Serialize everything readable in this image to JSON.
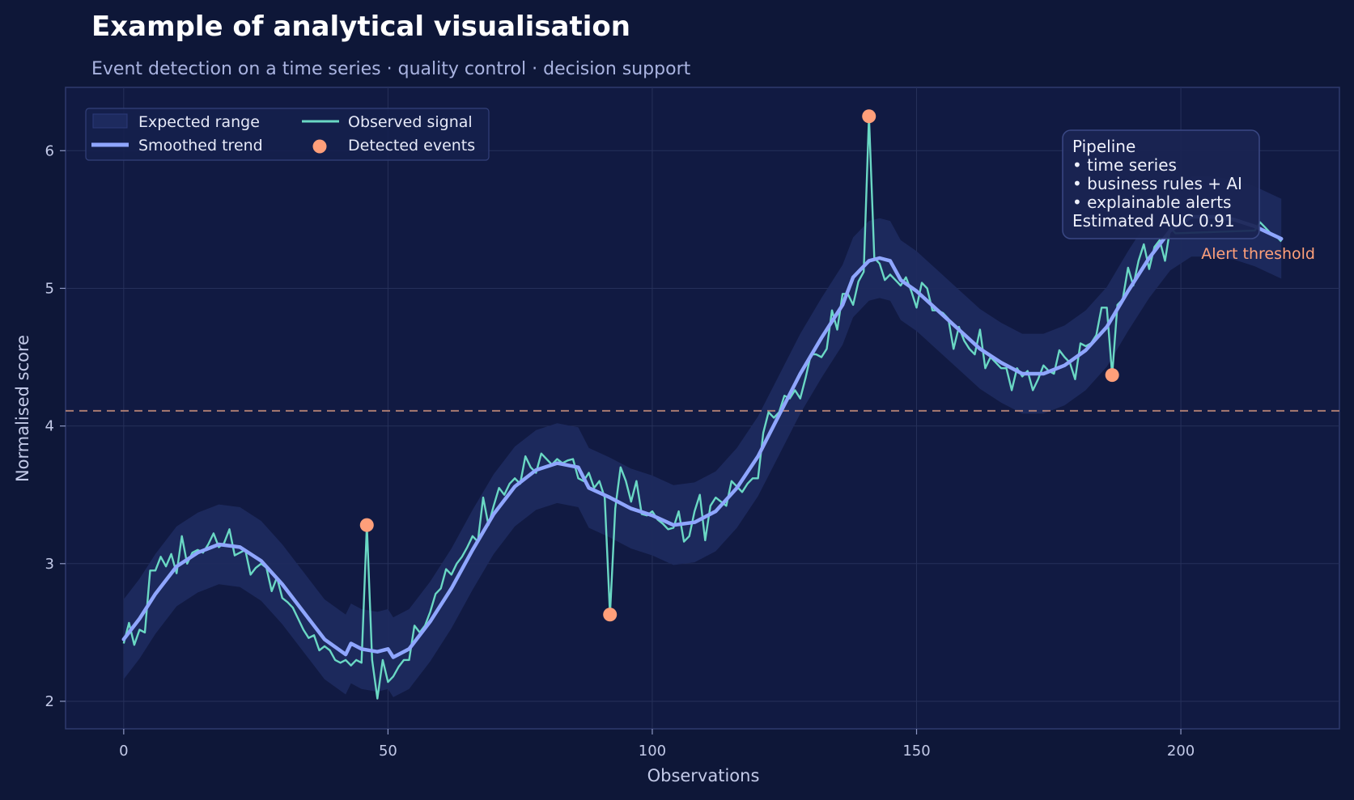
{
  "chart_data": {
    "type": "line",
    "title": "Example of analytical visualisation",
    "subtitle": "Event detection on a time series · quality control · decision support",
    "xlabel": "Observations",
    "ylabel": "Normalised score",
    "xlim": [
      -11,
      230
    ],
    "ylim": [
      1.8,
      6.46
    ],
    "xticks": [
      0,
      50,
      100,
      150,
      200
    ],
    "yticks": [
      2,
      3,
      4,
      5,
      6
    ],
    "grid": true,
    "legend_position": "top-left",
    "legend": {
      "band": "Expected range",
      "trend": "Smoothed trend",
      "signal": "Observed signal",
      "events": "Detected events"
    },
    "threshold": {
      "value": 4.11,
      "label": "Alert threshold",
      "color": "#ffa07a"
    },
    "info_box": {
      "lines": [
        "Pipeline",
        "• time series",
        "• business rules + AI",
        "• explainable alerts",
        "Estimated AUC 0.91"
      ]
    },
    "band_halfwidth": 0.29,
    "trend": [
      [
        0,
        2.45
      ],
      [
        3,
        2.6
      ],
      [
        6,
        2.78
      ],
      [
        10,
        2.98
      ],
      [
        14,
        3.08
      ],
      [
        18,
        3.14
      ],
      [
        22,
        3.12
      ],
      [
        26,
        3.02
      ],
      [
        30,
        2.85
      ],
      [
        34,
        2.65
      ],
      [
        38,
        2.45
      ],
      [
        42,
        2.34
      ],
      [
        43,
        2.42
      ],
      [
        45,
        2.38
      ],
      [
        48,
        2.36
      ],
      [
        50,
        2.38
      ],
      [
        51,
        2.32
      ],
      [
        54,
        2.38
      ],
      [
        58,
        2.58
      ],
      [
        62,
        2.82
      ],
      [
        66,
        3.1
      ],
      [
        70,
        3.36
      ],
      [
        74,
        3.56
      ],
      [
        78,
        3.68
      ],
      [
        82,
        3.73
      ],
      [
        86,
        3.7
      ],
      [
        88,
        3.55
      ],
      [
        92,
        3.48
      ],
      [
        96,
        3.4
      ],
      [
        100,
        3.35
      ],
      [
        104,
        3.28
      ],
      [
        108,
        3.3
      ],
      [
        112,
        3.38
      ],
      [
        116,
        3.55
      ],
      [
        120,
        3.78
      ],
      [
        124,
        4.08
      ],
      [
        128,
        4.38
      ],
      [
        132,
        4.64
      ],
      [
        136,
        4.88
      ],
      [
        138,
        5.08
      ],
      [
        141,
        5.2
      ],
      [
        143,
        5.22
      ],
      [
        145,
        5.2
      ],
      [
        147,
        5.06
      ],
      [
        150,
        4.98
      ],
      [
        154,
        4.84
      ],
      [
        158,
        4.7
      ],
      [
        162,
        4.56
      ],
      [
        166,
        4.46
      ],
      [
        170,
        4.38
      ],
      [
        174,
        4.38
      ],
      [
        178,
        4.44
      ],
      [
        182,
        4.55
      ],
      [
        186,
        4.72
      ],
      [
        190,
        4.98
      ],
      [
        194,
        5.22
      ],
      [
        198,
        5.42
      ],
      [
        202,
        5.52
      ],
      [
        206,
        5.52
      ],
      [
        210,
        5.5
      ],
      [
        214,
        5.45
      ],
      [
        219,
        5.36
      ]
    ],
    "signal": [
      [
        0,
        2.42
      ],
      [
        1,
        2.57
      ],
      [
        2,
        2.41
      ],
      [
        3,
        2.52
      ],
      [
        4,
        2.5
      ],
      [
        5,
        2.95
      ],
      [
        6,
        2.95
      ],
      [
        7,
        3.05
      ],
      [
        8,
        2.98
      ],
      [
        9,
        3.07
      ],
      [
        10,
        2.93
      ],
      [
        11,
        3.2
      ],
      [
        12,
        3.0
      ],
      [
        13,
        3.08
      ],
      [
        14,
        3.1
      ],
      [
        15,
        3.08
      ],
      [
        16,
        3.14
      ],
      [
        17,
        3.22
      ],
      [
        18,
        3.12
      ],
      [
        19,
        3.15
      ],
      [
        20,
        3.25
      ],
      [
        21,
        3.06
      ],
      [
        22,
        3.08
      ],
      [
        23,
        3.1
      ],
      [
        24,
        2.92
      ],
      [
        25,
        2.97
      ],
      [
        26,
        3.0
      ],
      [
        27,
        2.97
      ],
      [
        28,
        2.8
      ],
      [
        29,
        2.9
      ],
      [
        30,
        2.75
      ],
      [
        31,
        2.72
      ],
      [
        32,
        2.68
      ],
      [
        33,
        2.6
      ],
      [
        34,
        2.52
      ],
      [
        35,
        2.46
      ],
      [
        36,
        2.48
      ],
      [
        37,
        2.37
      ],
      [
        38,
        2.4
      ],
      [
        39,
        2.37
      ],
      [
        40,
        2.3
      ],
      [
        41,
        2.28
      ],
      [
        42,
        2.3
      ],
      [
        43,
        2.26
      ],
      [
        44,
        2.3
      ],
      [
        45,
        2.28
      ],
      [
        46,
        3.28
      ],
      [
        47,
        2.3
      ],
      [
        48,
        2.02
      ],
      [
        49,
        2.3
      ],
      [
        50,
        2.14
      ],
      [
        51,
        2.18
      ],
      [
        52,
        2.25
      ],
      [
        53,
        2.3
      ],
      [
        54,
        2.3
      ],
      [
        55,
        2.55
      ],
      [
        56,
        2.5
      ],
      [
        57,
        2.55
      ],
      [
        58,
        2.65
      ],
      [
        59,
        2.78
      ],
      [
        60,
        2.82
      ],
      [
        61,
        2.96
      ],
      [
        62,
        2.92
      ],
      [
        63,
        3.0
      ],
      [
        64,
        3.05
      ],
      [
        65,
        3.12
      ],
      [
        66,
        3.2
      ],
      [
        67,
        3.16
      ],
      [
        68,
        3.48
      ],
      [
        69,
        3.28
      ],
      [
        70,
        3.42
      ],
      [
        71,
        3.55
      ],
      [
        72,
        3.5
      ],
      [
        73,
        3.58
      ],
      [
        74,
        3.62
      ],
      [
        75,
        3.58
      ],
      [
        76,
        3.78
      ],
      [
        77,
        3.7
      ],
      [
        78,
        3.66
      ],
      [
        79,
        3.8
      ],
      [
        80,
        3.76
      ],
      [
        81,
        3.72
      ],
      [
        82,
        3.76
      ],
      [
        83,
        3.73
      ],
      [
        84,
        3.75
      ],
      [
        85,
        3.76
      ],
      [
        86,
        3.62
      ],
      [
        87,
        3.6
      ],
      [
        88,
        3.66
      ],
      [
        89,
        3.55
      ],
      [
        90,
        3.6
      ],
      [
        91,
        3.48
      ],
      [
        92,
        2.63
      ],
      [
        93,
        3.4
      ],
      [
        94,
        3.7
      ],
      [
        95,
        3.6
      ],
      [
        96,
        3.45
      ],
      [
        97,
        3.6
      ],
      [
        98,
        3.36
      ],
      [
        99,
        3.35
      ],
      [
        100,
        3.38
      ],
      [
        101,
        3.32
      ],
      [
        102,
        3.29
      ],
      [
        103,
        3.25
      ],
      [
        104,
        3.26
      ],
      [
        105,
        3.38
      ],
      [
        106,
        3.16
      ],
      [
        107,
        3.2
      ],
      [
        108,
        3.38
      ],
      [
        109,
        3.5
      ],
      [
        110,
        3.17
      ],
      [
        111,
        3.42
      ],
      [
        112,
        3.48
      ],
      [
        113,
        3.45
      ],
      [
        114,
        3.42
      ],
      [
        115,
        3.6
      ],
      [
        116,
        3.56
      ],
      [
        117,
        3.52
      ],
      [
        118,
        3.58
      ],
      [
        119,
        3.62
      ],
      [
        120,
        3.62
      ],
      [
        121,
        3.95
      ],
      [
        122,
        4.1
      ],
      [
        123,
        4.06
      ],
      [
        124,
        4.1
      ],
      [
        125,
        4.22
      ],
      [
        126,
        4.2
      ],
      [
        127,
        4.26
      ],
      [
        128,
        4.2
      ],
      [
        129,
        4.35
      ],
      [
        130,
        4.52
      ],
      [
        131,
        4.52
      ],
      [
        132,
        4.5
      ],
      [
        133,
        4.56
      ],
      [
        134,
        4.84
      ],
      [
        135,
        4.7
      ],
      [
        136,
        4.96
      ],
      [
        137,
        4.96
      ],
      [
        138,
        4.88
      ],
      [
        139,
        5.05
      ],
      [
        140,
        5.12
      ],
      [
        141,
        6.25
      ],
      [
        142,
        5.22
      ],
      [
        143,
        5.18
      ],
      [
        144,
        5.06
      ],
      [
        145,
        5.1
      ],
      [
        146,
        5.06
      ],
      [
        147,
        5.02
      ],
      [
        148,
        5.08
      ],
      [
        149,
        4.98
      ],
      [
        150,
        4.86
      ],
      [
        151,
        5.04
      ],
      [
        152,
        5.0
      ],
      [
        153,
        4.84
      ],
      [
        154,
        4.84
      ],
      [
        155,
        4.82
      ],
      [
        156,
        4.78
      ],
      [
        157,
        4.56
      ],
      [
        158,
        4.72
      ],
      [
        159,
        4.62
      ],
      [
        160,
        4.56
      ],
      [
        161,
        4.52
      ],
      [
        162,
        4.7
      ],
      [
        163,
        4.42
      ],
      [
        164,
        4.5
      ],
      [
        165,
        4.46
      ],
      [
        166,
        4.42
      ],
      [
        167,
        4.42
      ],
      [
        168,
        4.26
      ],
      [
        169,
        4.42
      ],
      [
        170,
        4.36
      ],
      [
        171,
        4.4
      ],
      [
        172,
        4.26
      ],
      [
        173,
        4.34
      ],
      [
        174,
        4.44
      ],
      [
        175,
        4.4
      ],
      [
        176,
        4.38
      ],
      [
        177,
        4.55
      ],
      [
        178,
        4.5
      ],
      [
        179,
        4.46
      ],
      [
        180,
        4.34
      ],
      [
        181,
        4.6
      ],
      [
        182,
        4.58
      ],
      [
        183,
        4.6
      ],
      [
        184,
        4.66
      ],
      [
        185,
        4.86
      ],
      [
        186,
        4.86
      ],
      [
        187,
        4.37
      ],
      [
        188,
        4.88
      ],
      [
        189,
        4.92
      ],
      [
        190,
        5.15
      ],
      [
        191,
        5.02
      ],
      [
        192,
        5.2
      ],
      [
        193,
        5.32
      ],
      [
        194,
        5.14
      ],
      [
        195,
        5.3
      ],
      [
        196,
        5.35
      ],
      [
        197,
        5.2
      ],
      [
        198,
        5.44
      ],
      [
        199,
        5.4
      ],
      [
        214,
        5.42
      ],
      [
        215,
        5.48
      ],
      [
        216,
        5.44
      ],
      [
        217,
        5.4
      ],
      [
        218,
        5.38
      ],
      [
        219,
        5.34
      ]
    ],
    "events": [
      [
        46,
        3.28
      ],
      [
        92,
        2.63
      ],
      [
        141,
        6.25
      ],
      [
        187,
        4.37
      ]
    ],
    "colors": {
      "background": "#0e1738",
      "plot_background": "#111a42",
      "grid": "#26305a",
      "band": "#1d2a5e",
      "trend": "#8fa6ff",
      "signal": "#6ad8c4",
      "events": "#ff9f7a",
      "threshold": "#c48b7a"
    }
  }
}
